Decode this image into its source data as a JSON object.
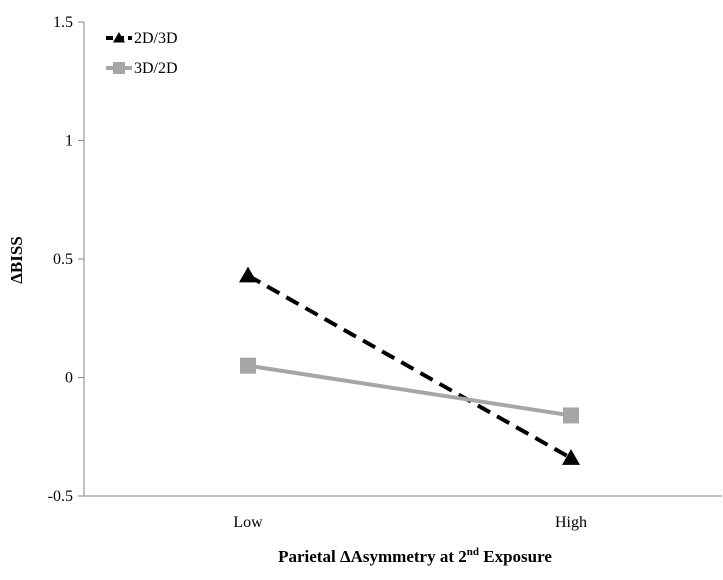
{
  "chart_data": {
    "type": "line",
    "title": "",
    "xlabel": "Parietal ΔAsymmetry at 2",
    "xlabel_superscript": "nd",
    "xlabel_suffix": " Exposure",
    "ylabel": "ΔBISS",
    "categories": [
      "Low",
      "High"
    ],
    "ylim": [
      -0.5,
      1.5
    ],
    "yticks": [
      "1.5",
      "1",
      "0.5",
      "0",
      "-0.5"
    ],
    "ytick_values": [
      1.5,
      1,
      0.5,
      0,
      -0.5
    ],
    "grid": false,
    "legend_position": "top-left",
    "series": [
      {
        "name": "2D/3D",
        "values": [
          0.43,
          -0.34
        ],
        "color": "#000000",
        "marker": "triangle",
        "line_style": "dashed"
      },
      {
        "name": "3D/2D",
        "values": [
          0.05,
          -0.16
        ],
        "color": "#a6a6a6",
        "marker": "square",
        "line_style": "solid"
      }
    ]
  }
}
